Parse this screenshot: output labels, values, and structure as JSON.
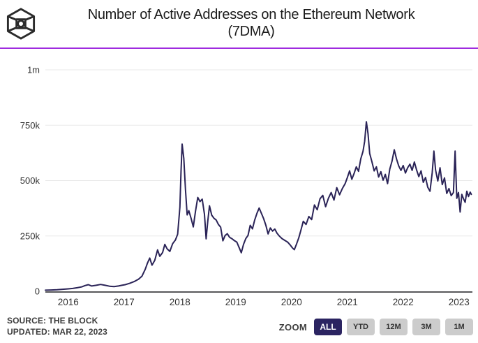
{
  "header": {
    "title_line1": "Number of Active Addresses on the Ethereum Network",
    "title_line2": "(7DMA)",
    "logo_icon": "the-block-cube-logo",
    "accent_color": "#9f2bdf"
  },
  "footer": {
    "source": "SOURCE: THE BLOCK",
    "updated": "UPDATED: MAR 22, 2023"
  },
  "zoom": {
    "label": "ZOOM",
    "selected_bg": "#2b2461",
    "unselected_bg": "#cccccc",
    "buttons": [
      {
        "label": "ALL",
        "selected": true
      },
      {
        "label": "YTD",
        "selected": false
      },
      {
        "label": "12M",
        "selected": false
      },
      {
        "label": "3M",
        "selected": false
      },
      {
        "label": "1M",
        "selected": false
      }
    ]
  },
  "chart_data": {
    "type": "line",
    "title": "Number of Active Addresses on the Ethereum Network (7DMA)",
    "line_color": "#2a2357",
    "grid": "horizontal-only",
    "legend": "none",
    "xlim": [
      2015.59,
      2023.24
    ],
    "ylim": [
      0,
      1000
    ],
    "y_unit": "thousands of active addresses",
    "x_ticks": [
      2016,
      2017,
      2018,
      2019,
      2020,
      2021,
      2022,
      2023
    ],
    "y_ticks": [
      {
        "value": 0,
        "label": "0"
      },
      {
        "value": 250,
        "label": "250k"
      },
      {
        "value": 500,
        "label": "500k"
      },
      {
        "value": 750,
        "label": "750k"
      },
      {
        "value": 1000,
        "label": "1m"
      }
    ],
    "series": [
      {
        "name": "Active Addresses (7DMA)",
        "points": [
          [
            2015.59,
            5
          ],
          [
            2015.7,
            6
          ],
          [
            2015.8,
            7
          ],
          [
            2015.9,
            9
          ],
          [
            2016.0,
            11
          ],
          [
            2016.08,
            13
          ],
          [
            2016.16,
            16
          ],
          [
            2016.24,
            20
          ],
          [
            2016.3,
            26
          ],
          [
            2016.36,
            30
          ],
          [
            2016.42,
            24
          ],
          [
            2016.5,
            27
          ],
          [
            2016.58,
            31
          ],
          [
            2016.66,
            27
          ],
          [
            2016.74,
            23
          ],
          [
            2016.82,
            21
          ],
          [
            2016.9,
            24
          ],
          [
            2016.96,
            27
          ],
          [
            2017.02,
            30
          ],
          [
            2017.1,
            36
          ],
          [
            2017.18,
            44
          ],
          [
            2017.26,
            55
          ],
          [
            2017.32,
            68
          ],
          [
            2017.38,
            100
          ],
          [
            2017.42,
            128
          ],
          [
            2017.46,
            150
          ],
          [
            2017.5,
            118
          ],
          [
            2017.55,
            140
          ],
          [
            2017.6,
            187
          ],
          [
            2017.64,
            158
          ],
          [
            2017.69,
            175
          ],
          [
            2017.73,
            212
          ],
          [
            2017.77,
            192
          ],
          [
            2017.82,
            180
          ],
          [
            2017.87,
            215
          ],
          [
            2017.92,
            232
          ],
          [
            2017.96,
            258
          ],
          [
            2018.0,
            380
          ],
          [
            2018.02,
            540
          ],
          [
            2018.04,
            665
          ],
          [
            2018.07,
            600
          ],
          [
            2018.1,
            459
          ],
          [
            2018.13,
            345
          ],
          [
            2018.16,
            364
          ],
          [
            2018.2,
            330
          ],
          [
            2018.24,
            291
          ],
          [
            2018.28,
            362
          ],
          [
            2018.32,
            424
          ],
          [
            2018.36,
            405
          ],
          [
            2018.4,
            416
          ],
          [
            2018.44,
            348
          ],
          [
            2018.47,
            237
          ],
          [
            2018.5,
            318
          ],
          [
            2018.53,
            386
          ],
          [
            2018.57,
            344
          ],
          [
            2018.61,
            330
          ],
          [
            2018.65,
            322
          ],
          [
            2018.69,
            302
          ],
          [
            2018.73,
            290
          ],
          [
            2018.77,
            228
          ],
          [
            2018.81,
            252
          ],
          [
            2018.85,
            260
          ],
          [
            2018.89,
            244
          ],
          [
            2018.93,
            238
          ],
          [
            2018.97,
            230
          ],
          [
            2019.02,
            222
          ],
          [
            2019.06,
            198
          ],
          [
            2019.1,
            174
          ],
          [
            2019.14,
            212
          ],
          [
            2019.18,
            238
          ],
          [
            2019.22,
            252
          ],
          [
            2019.26,
            298
          ],
          [
            2019.3,
            282
          ],
          [
            2019.34,
            322
          ],
          [
            2019.38,
            352
          ],
          [
            2019.42,
            376
          ],
          [
            2019.46,
            352
          ],
          [
            2019.5,
            328
          ],
          [
            2019.54,
            298
          ],
          [
            2019.58,
            259
          ],
          [
            2019.62,
            286
          ],
          [
            2019.66,
            272
          ],
          [
            2019.7,
            281
          ],
          [
            2019.74,
            262
          ],
          [
            2019.78,
            250
          ],
          [
            2019.83,
            238
          ],
          [
            2019.88,
            230
          ],
          [
            2019.93,
            222
          ],
          [
            2019.98,
            208
          ],
          [
            2020.02,
            195
          ],
          [
            2020.05,
            188
          ],
          [
            2020.09,
            214
          ],
          [
            2020.13,
            242
          ],
          [
            2020.17,
            278
          ],
          [
            2020.21,
            316
          ],
          [
            2020.26,
            302
          ],
          [
            2020.31,
            338
          ],
          [
            2020.36,
            324
          ],
          [
            2020.41,
            390
          ],
          [
            2020.46,
            368
          ],
          [
            2020.51,
            418
          ],
          [
            2020.56,
            433
          ],
          [
            2020.61,
            382
          ],
          [
            2020.66,
            420
          ],
          [
            2020.71,
            446
          ],
          [
            2020.76,
            412
          ],
          [
            2020.81,
            468
          ],
          [
            2020.86,
            436
          ],
          [
            2020.91,
            464
          ],
          [
            2020.96,
            486
          ],
          [
            2021.0,
            514
          ],
          [
            2021.04,
            544
          ],
          [
            2021.08,
            506
          ],
          [
            2021.12,
            532
          ],
          [
            2021.16,
            562
          ],
          [
            2021.2,
            542
          ],
          [
            2021.24,
            598
          ],
          [
            2021.28,
            632
          ],
          [
            2021.31,
            678
          ],
          [
            2021.34,
            766
          ],
          [
            2021.37,
            712
          ],
          [
            2021.4,
            622
          ],
          [
            2021.44,
            585
          ],
          [
            2021.48,
            544
          ],
          [
            2021.52,
            562
          ],
          [
            2021.56,
            516
          ],
          [
            2021.6,
            540
          ],
          [
            2021.64,
            502
          ],
          [
            2021.68,
            528
          ],
          [
            2021.72,
            486
          ],
          [
            2021.76,
            552
          ],
          [
            2021.8,
            588
          ],
          [
            2021.84,
            639
          ],
          [
            2021.88,
            598
          ],
          [
            2021.92,
            566
          ],
          [
            2021.96,
            546
          ],
          [
            2022.0,
            568
          ],
          [
            2022.04,
            534
          ],
          [
            2022.08,
            558
          ],
          [
            2022.12,
            574
          ],
          [
            2022.16,
            546
          ],
          [
            2022.2,
            584
          ],
          [
            2022.24,
            548
          ],
          [
            2022.28,
            518
          ],
          [
            2022.32,
            544
          ],
          [
            2022.36,
            492
          ],
          [
            2022.4,
            514
          ],
          [
            2022.44,
            470
          ],
          [
            2022.48,
            452
          ],
          [
            2022.52,
            536
          ],
          [
            2022.55,
            633
          ],
          [
            2022.58,
            548
          ],
          [
            2022.62,
            498
          ],
          [
            2022.66,
            558
          ],
          [
            2022.7,
            482
          ],
          [
            2022.74,
            512
          ],
          [
            2022.78,
            442
          ],
          [
            2022.82,
            464
          ],
          [
            2022.86,
            432
          ],
          [
            2022.9,
            446
          ],
          [
            2022.93,
            633
          ],
          [
            2022.96,
            420
          ],
          [
            2022.99,
            446
          ],
          [
            2023.02,
            358
          ],
          [
            2023.05,
            438
          ],
          [
            2023.08,
            418
          ],
          [
            2023.11,
            402
          ],
          [
            2023.14,
            452
          ],
          [
            2023.17,
            428
          ],
          [
            2023.2,
            448
          ],
          [
            2023.22,
            438
          ]
        ]
      }
    ]
  }
}
